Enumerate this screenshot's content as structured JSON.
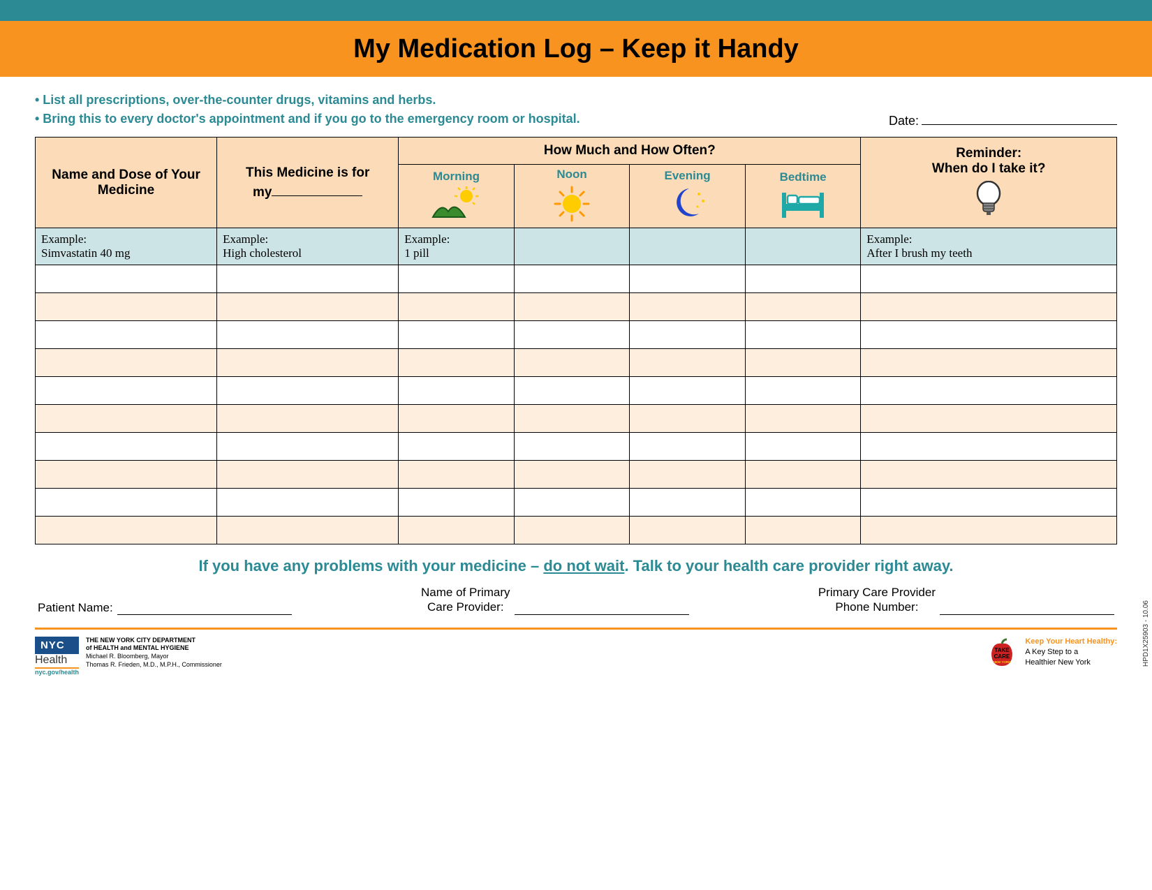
{
  "colors": {
    "teal": "#2b8a93",
    "orange": "#f7931e",
    "peach": "#fcdcb8",
    "peach_light": "#fdeedd",
    "example_bg": "#cde4e6",
    "nyc_blue": "#1a4f8a"
  },
  "banner": {
    "title": "My Medication Log – Keep it Handy"
  },
  "instructions": {
    "line1": "• List all prescriptions, over-the-counter drugs, vitamins and herbs.",
    "line2": "• Bring this to every doctor's appointment and if you go to the emergency room or hospital."
  },
  "date_label": "Date:",
  "table": {
    "headers": {
      "name": "Name and Dose of Your Medicine",
      "for_label": "This Medicine is for",
      "for_prefix": "my",
      "howmuch": "How Much and How Often?",
      "morning": "Morning",
      "noon": "Noon",
      "evening": "Evening",
      "bedtime": "Bedtime",
      "reminder_l1": "Reminder:",
      "reminder_l2": "When do I take it?"
    },
    "example": {
      "name_l1": "Example:",
      "name_l2": "Simvastatin 40 mg",
      "for_l1": "Example:",
      "for_l2": "High cholesterol",
      "morning_l1": "Example:",
      "morning_l2": "1 pill",
      "reminder_l1": "Example:",
      "reminder_l2": "After I brush my teeth"
    },
    "blank_row_count": 10
  },
  "footer_warning": {
    "pre": "If you have any problems with your medicine – ",
    "emph": "do not wait",
    "post": ".  Talk to your health care provider right away."
  },
  "signatures": {
    "patient": "Patient Name:",
    "pcp_name_l1": "Name of Primary",
    "pcp_name_l2": "Care Provider:",
    "pcp_phone_l1": "Primary Care Provider",
    "pcp_phone_l2": "Phone Number:"
  },
  "nyc": {
    "badge": "NYC",
    "health": "Health",
    "dept_l1": "THE NEW YORK CITY DEPARTMENT",
    "dept_l2": "of HEALTH and MENTAL HYGIENE",
    "mayor": "Michael R. Bloomberg, Mayor",
    "comm": "Thomas R. Frieden, M.D., M.P.H., Commissioner",
    "link": "nyc.gov/health"
  },
  "takecare": {
    "badge_l1": "TAKE",
    "badge_l2": "CARE",
    "badge_l3": "NEW YORK",
    "txt_l1": "Keep Your Heart Healthy:",
    "txt_l2": "A Key Step to a",
    "txt_l3": "Healthier New York"
  },
  "side_code": "HPD1X25903 - 10.06"
}
